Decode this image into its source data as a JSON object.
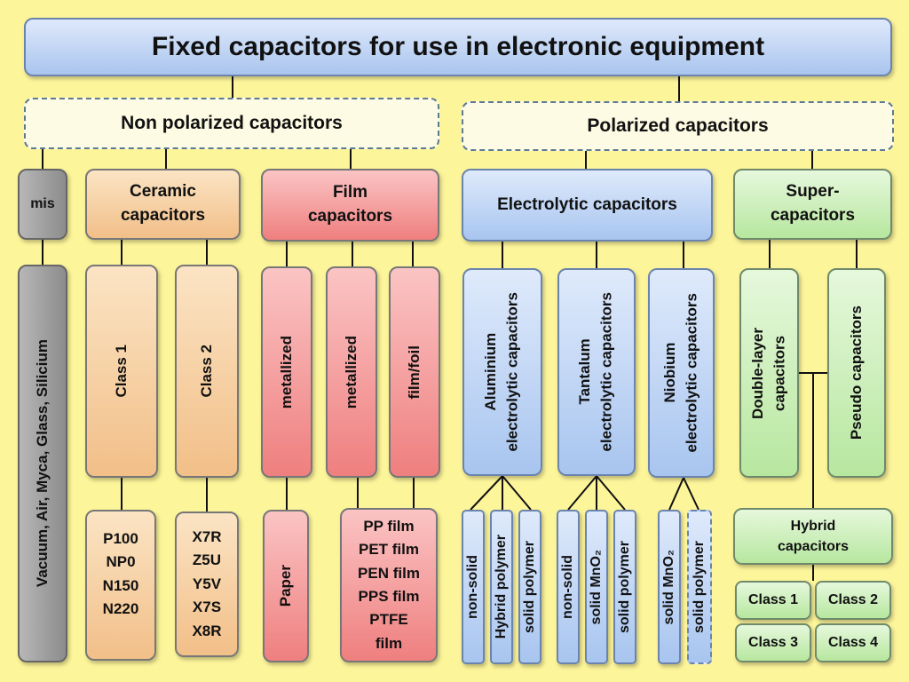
{
  "title": "Fixed capacitors for use in electronic equipment",
  "non_polarized": "Non polarized capacitors",
  "polarized": "Polarized capacitors",
  "mis": "mis",
  "ceramic": "Ceramic\ncapacitors",
  "film": "Film\ncapacitors",
  "electrolytic": "Electrolytic capacitors",
  "super": "Super-\ncapacitors",
  "misc_materials": "Vacuum, Air, Myca, Glass, Silicium",
  "class1": "Class 1",
  "class2": "Class 2",
  "metallized_1": "metallized",
  "metallized_2": "metallized",
  "film_foil": "film/foil",
  "aluminium": "Aluminium\nelectrolytic capacitors",
  "tantalum": "Tantalum\nelectrolytic capacitors",
  "niobium": "Niobium\nelectrolytic capacitors",
  "double_layer": "Double-layer\ncapacitors",
  "pseudo": "Pseudo capacitors",
  "class1_types": "P100\nNP0\nN150\nN220",
  "class2_types": "X7R\nZ5U\nY5V\nX7S\nX8R",
  "paper": "Paper",
  "film_types": "PP film\nPET film\nPEN film\nPPS film\nPTFE\nfilm",
  "al_nonsolid": "non-solid",
  "al_hybrid": "Hybrid polymer",
  "al_solidpoly": "solid polymer",
  "ta_nonsolid": "non-solid",
  "ta_mno2": "solid MnO₂",
  "ta_solidpoly": "solid polymer",
  "nb_mno2": "solid MnO₂",
  "nb_solidpoly": "solid polymer",
  "hybrid": "Hybrid\ncapacitors",
  "hy_class1": "Class 1",
  "hy_class2": "Class 2",
  "hy_class3": "Class 3",
  "hy_class4": "Class 4"
}
